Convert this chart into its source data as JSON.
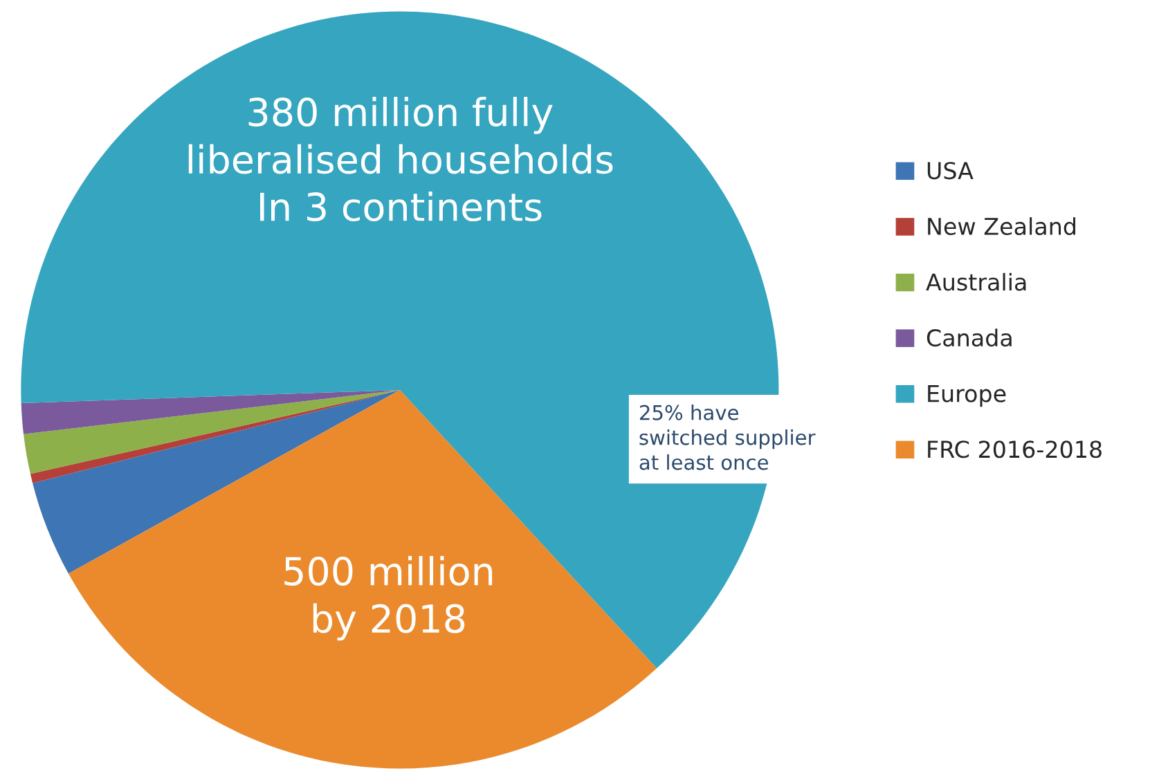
{
  "chart_data": {
    "type": "pie",
    "categories": [
      "USA",
      "New Zealand",
      "Australia",
      "Canada",
      "Europe",
      "FRC 2016-2018"
    ],
    "values": [
      4.1,
      0.4,
      1.7,
      1.3,
      63.7,
      28.8
    ],
    "colors": [
      "#3d75b5",
      "#b5403a",
      "#8db04a",
      "#7a5a9c",
      "#36a5c0",
      "#ea8a2c"
    ],
    "annotations": [
      "380 million fully\nliberalised households\nIn 3 continents",
      "25% have\nswitched supplier\nat least once",
      "500 million\nby 2018"
    ],
    "legend": "right"
  }
}
